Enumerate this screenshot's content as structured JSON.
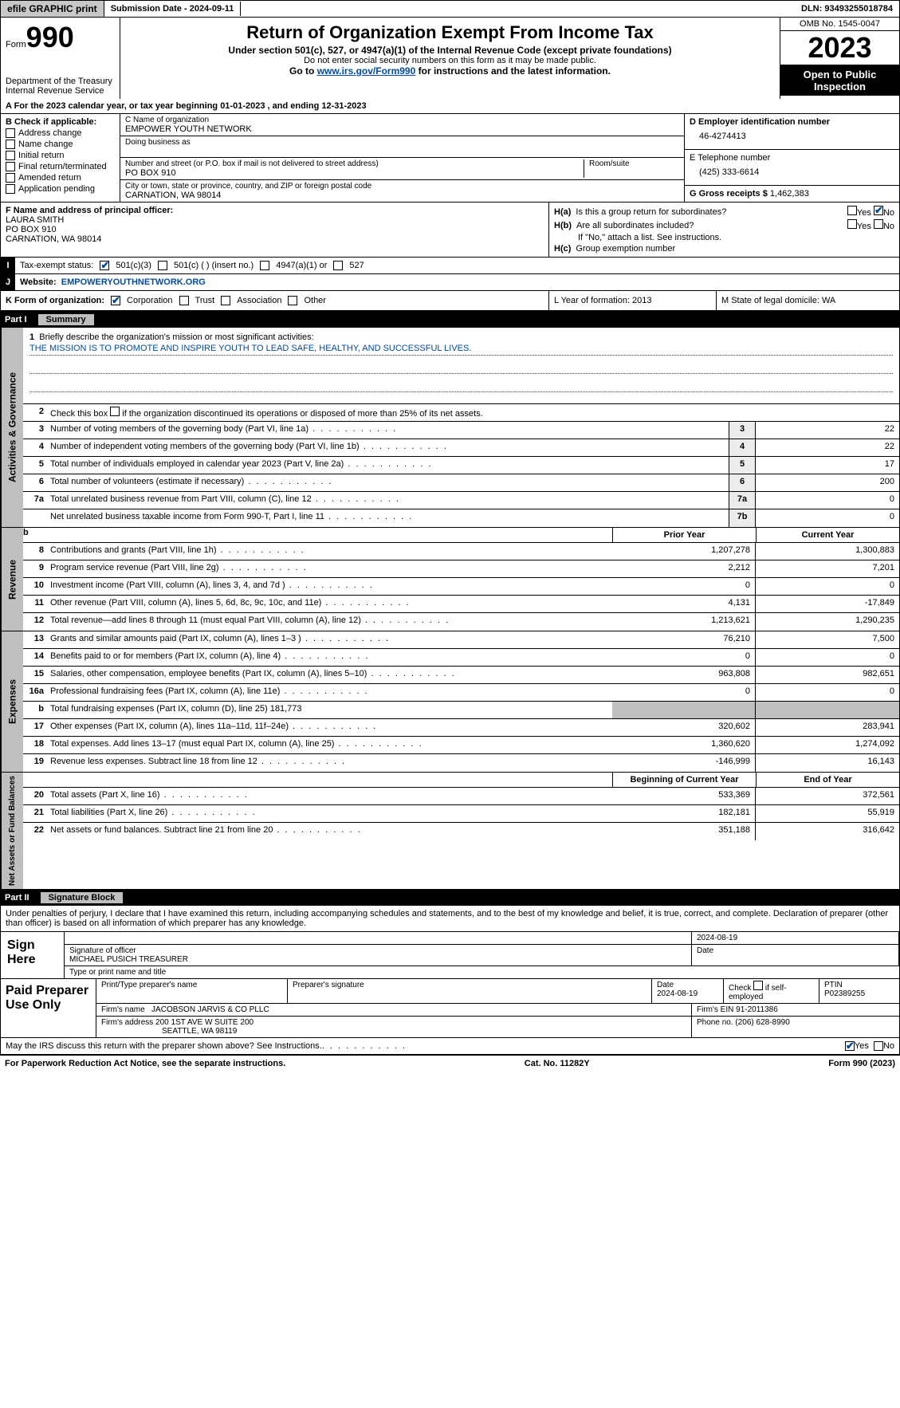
{
  "topbar": {
    "efile": "efile GRAPHIC print",
    "submission": "Submission Date - 2024-09-11",
    "dln": "DLN: 93493255018784"
  },
  "header": {
    "form_label": "Form",
    "form_number": "990",
    "dept": "Department of the Treasury\nInternal Revenue Service",
    "title": "Return of Organization Exempt From Income Tax",
    "under": "Under section 501(c), 527, or 4947(a)(1) of the Internal Revenue Code (except private foundations)",
    "ssn_note": "Do not enter social security numbers on this form as it may be made public.",
    "goto_prefix": "Go to ",
    "goto_link": "www.irs.gov/Form990",
    "goto_suffix": " for instructions and the latest information.",
    "omb": "OMB No. 1545-0047",
    "year": "2023",
    "open": "Open to Public Inspection"
  },
  "lineA": "A For the 2023 calendar year, or tax year beginning 01-01-2023    , and ending 12-31-2023",
  "boxB": {
    "title": "B Check if applicable:",
    "opts": [
      "Address change",
      "Name change",
      "Initial return",
      "Final return/terminated",
      "Amended return",
      "Application pending"
    ]
  },
  "boxC": {
    "name_label": "C Name of organization",
    "name": "EMPOWER YOUTH NETWORK",
    "dba_label": "Doing business as",
    "street_label": "Number and street (or P.O. box if mail is not delivered to street address)",
    "street": "PO BOX 910",
    "room_label": "Room/suite",
    "city_label": "City or town, state or province, country, and ZIP or foreign postal code",
    "city": "CARNATION, WA  98014"
  },
  "boxD": {
    "label": "D Employer identification number",
    "val": "46-4274413"
  },
  "boxE": {
    "label": "E Telephone number",
    "val": "(425) 333-6614"
  },
  "boxG": {
    "label": "G Gross receipts $",
    "val": "1,462,383"
  },
  "boxF": {
    "label": "F  Name and address of principal officer:",
    "line1": "LAURA SMITH",
    "line2": "PO BOX 910",
    "line3": "CARNATION, WA  98014"
  },
  "boxH": {
    "a_label": "H(a)  Is this a group return for subordinates?",
    "b_label": "H(b)  Are all subordinates included?",
    "b_note": "If \"No,\" attach a list. See instructions.",
    "c_label": "H(c)  Group exemption number"
  },
  "taxI": {
    "label": "Tax-exempt status:",
    "opts": [
      "501(c)(3)",
      "501(c) (  ) (insert no.)",
      "4947(a)(1) or",
      "527"
    ]
  },
  "lineJ": {
    "label": "Website:",
    "val": "EMPOWERYOUTHNETWORK.ORG"
  },
  "lineK": {
    "label": "K Form of organization:",
    "opts": [
      "Corporation",
      "Trust",
      "Association",
      "Other"
    ],
    "L": "L Year of formation: 2013",
    "M": "M State of legal domicile: WA"
  },
  "part1": {
    "num": "Part I",
    "title": "Summary"
  },
  "mission": {
    "q": "Briefly describe the organization's mission or most significant activities:",
    "text": "THE MISSION IS TO PROMOTE AND INSPIRE YOUTH TO LEAD SAFE, HEALTHY, AND SUCCESSFUL LIVES."
  },
  "line2": "Check this box        if the organization discontinued its operations or disposed of more than 25% of its net assets.",
  "governance": [
    {
      "n": "3",
      "t": "Number of voting members of the governing body (Part VI, line 1a)",
      "ref": "3",
      "v": "22"
    },
    {
      "n": "4",
      "t": "Number of independent voting members of the governing body (Part VI, line 1b)",
      "ref": "4",
      "v": "22"
    },
    {
      "n": "5",
      "t": "Total number of individuals employed in calendar year 2023 (Part V, line 2a)",
      "ref": "5",
      "v": "17"
    },
    {
      "n": "6",
      "t": "Total number of volunteers (estimate if necessary)",
      "ref": "6",
      "v": "200"
    },
    {
      "n": "7a",
      "t": "Total unrelated business revenue from Part VIII, column (C), line 12",
      "ref": "7a",
      "v": "0"
    },
    {
      "n": "",
      "t": "Net unrelated business taxable income from Form 990-T, Part I, line 11",
      "ref": "7b",
      "v": "0"
    }
  ],
  "rev_head": {
    "prior": "Prior Year",
    "current": "Current Year"
  },
  "revenue": [
    {
      "n": "8",
      "t": "Contributions and grants (Part VIII, line 1h)",
      "p": "1,207,278",
      "c": "1,300,883"
    },
    {
      "n": "9",
      "t": "Program service revenue (Part VIII, line 2g)",
      "p": "2,212",
      "c": "7,201"
    },
    {
      "n": "10",
      "t": "Investment income (Part VIII, column (A), lines 3, 4, and 7d )",
      "p": "0",
      "c": "0"
    },
    {
      "n": "11",
      "t": "Other revenue (Part VIII, column (A), lines 5, 6d, 8c, 9c, 10c, and 11e)",
      "p": "4,131",
      "c": "-17,849"
    },
    {
      "n": "12",
      "t": "Total revenue—add lines 8 through 11 (must equal Part VIII, column (A), line 12)",
      "p": "1,213,621",
      "c": "1,290,235"
    }
  ],
  "expenses": [
    {
      "n": "13",
      "t": "Grants and similar amounts paid (Part IX, column (A), lines 1–3 )",
      "p": "76,210",
      "c": "7,500"
    },
    {
      "n": "14",
      "t": "Benefits paid to or for members (Part IX, column (A), line 4)",
      "p": "0",
      "c": "0"
    },
    {
      "n": "15",
      "t": "Salaries, other compensation, employee benefits (Part IX, column (A), lines 5–10)",
      "p": "963,808",
      "c": "982,651"
    },
    {
      "n": "16a",
      "t": "Professional fundraising fees (Part IX, column (A), line 11e)",
      "p": "0",
      "c": "0"
    },
    {
      "n": "b",
      "t": "Total fundraising expenses (Part IX, column (D), line 25) 181,773",
      "p": "",
      "c": "",
      "grey": true
    },
    {
      "n": "17",
      "t": "Other expenses (Part IX, column (A), lines 11a–11d, 11f–24e)",
      "p": "320,602",
      "c": "283,941"
    },
    {
      "n": "18",
      "t": "Total expenses. Add lines 13–17 (must equal Part IX, column (A), line 25)",
      "p": "1,360,620",
      "c": "1,274,092"
    },
    {
      "n": "19",
      "t": "Revenue less expenses. Subtract line 18 from line 12",
      "p": "-146,999",
      "c": "16,143"
    }
  ],
  "na_head": {
    "b": "Beginning of Current Year",
    "e": "End of Year"
  },
  "netassets": [
    {
      "n": "20",
      "t": "Total assets (Part X, line 16)",
      "p": "533,369",
      "c": "372,561"
    },
    {
      "n": "21",
      "t": "Total liabilities (Part X, line 26)",
      "p": "182,181",
      "c": "55,919"
    },
    {
      "n": "22",
      "t": "Net assets or fund balances. Subtract line 21 from line 20",
      "p": "351,188",
      "c": "316,642"
    }
  ],
  "part2": {
    "num": "Part II",
    "title": "Signature Block"
  },
  "penalty": "Under penalties of perjury, I declare that I have examined this return, including accompanying schedules and statements, and to the best of my knowledge and belief, it is true, correct, and complete. Declaration of preparer (other than officer) is based on all information of which preparer has any knowledge.",
  "sign": {
    "left": "Sign Here",
    "date": "2024-08-19",
    "sig_label": "Signature of officer",
    "officer": "MICHAEL PUSICH  TREASURER",
    "type_label": "Type or print name and title",
    "date_label": "Date"
  },
  "paid": {
    "left": "Paid Preparer Use Only",
    "h1": "Print/Type preparer's name",
    "h2": "Preparer's signature",
    "h3": "Date",
    "h4": "Check         if self-employed",
    "h5": "PTIN",
    "date": "2024-08-19",
    "ptin": "P02389255",
    "firm_label": "Firm's name",
    "firm": "JACOBSON JARVIS & CO PLLC",
    "ein_label": "Firm's EIN",
    "ein": "91-2011386",
    "addr_label": "Firm's address",
    "addr1": "200 1ST AVE W SUITE 200",
    "addr2": "SEATTLE, WA  98119",
    "phone_label": "Phone no.",
    "phone": "(206) 628-8990"
  },
  "discuss": "May the IRS discuss this return with the preparer shown above? See Instructions.",
  "footer": {
    "l": "For Paperwork Reduction Act Notice, see the separate instructions.",
    "c": "Cat. No. 11282Y",
    "r": "Form 990 (2023)"
  }
}
